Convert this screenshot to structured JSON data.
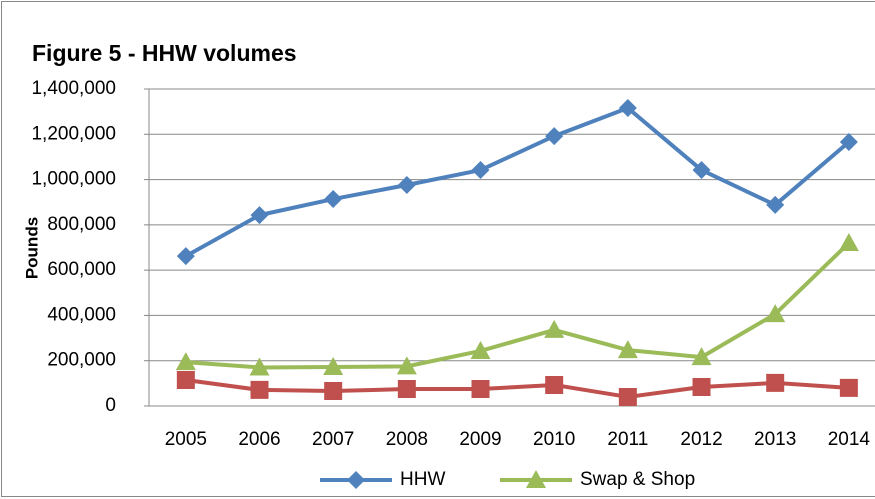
{
  "chart_data": {
    "type": "line",
    "title": "Figure 5 - HHW volumes",
    "ylabel": "Pounds",
    "categories": [
      "2005",
      "2006",
      "2007",
      "2008",
      "2009",
      "2010",
      "2011",
      "2012",
      "2013",
      "2014"
    ],
    "series": [
      {
        "name": "HHW",
        "color": "#4f81bd",
        "marker": "diamond",
        "values": [
          662000,
          843000,
          914000,
          976000,
          1042000,
          1192000,
          1316000,
          1042000,
          888000,
          1166000
        ]
      },
      {
        "color": "#c0504d",
        "marker": "square",
        "values": [
          115000,
          71000,
          66000,
          75000,
          75000,
          93000,
          40000,
          84000,
          102000,
          80000
        ]
      },
      {
        "name": "Swap & Shop",
        "color": "#9bbb59",
        "marker": "triangle",
        "values": [
          194000,
          170000,
          172000,
          175000,
          243000,
          336000,
          247000,
          216000,
          406000,
          720000
        ]
      }
    ],
    "ylim": [
      0,
      1400000
    ],
    "yticks": [
      0,
      {
        "value": 200000,
        "label": "200,000"
      },
      {
        "value": 400000,
        "label": "400,000"
      },
      {
        "value": 600000,
        "label": "600,000"
      },
      {
        "value": 800000,
        "label": "800,000"
      },
      {
        "value": 1000000,
        "label": "1,000,000"
      },
      {
        "value": 1200000,
        "label": "1,200,000"
      },
      {
        "value": 1400000,
        "label": "1,400,000"
      }
    ],
    "grid": true,
    "legend": "bottom"
  }
}
